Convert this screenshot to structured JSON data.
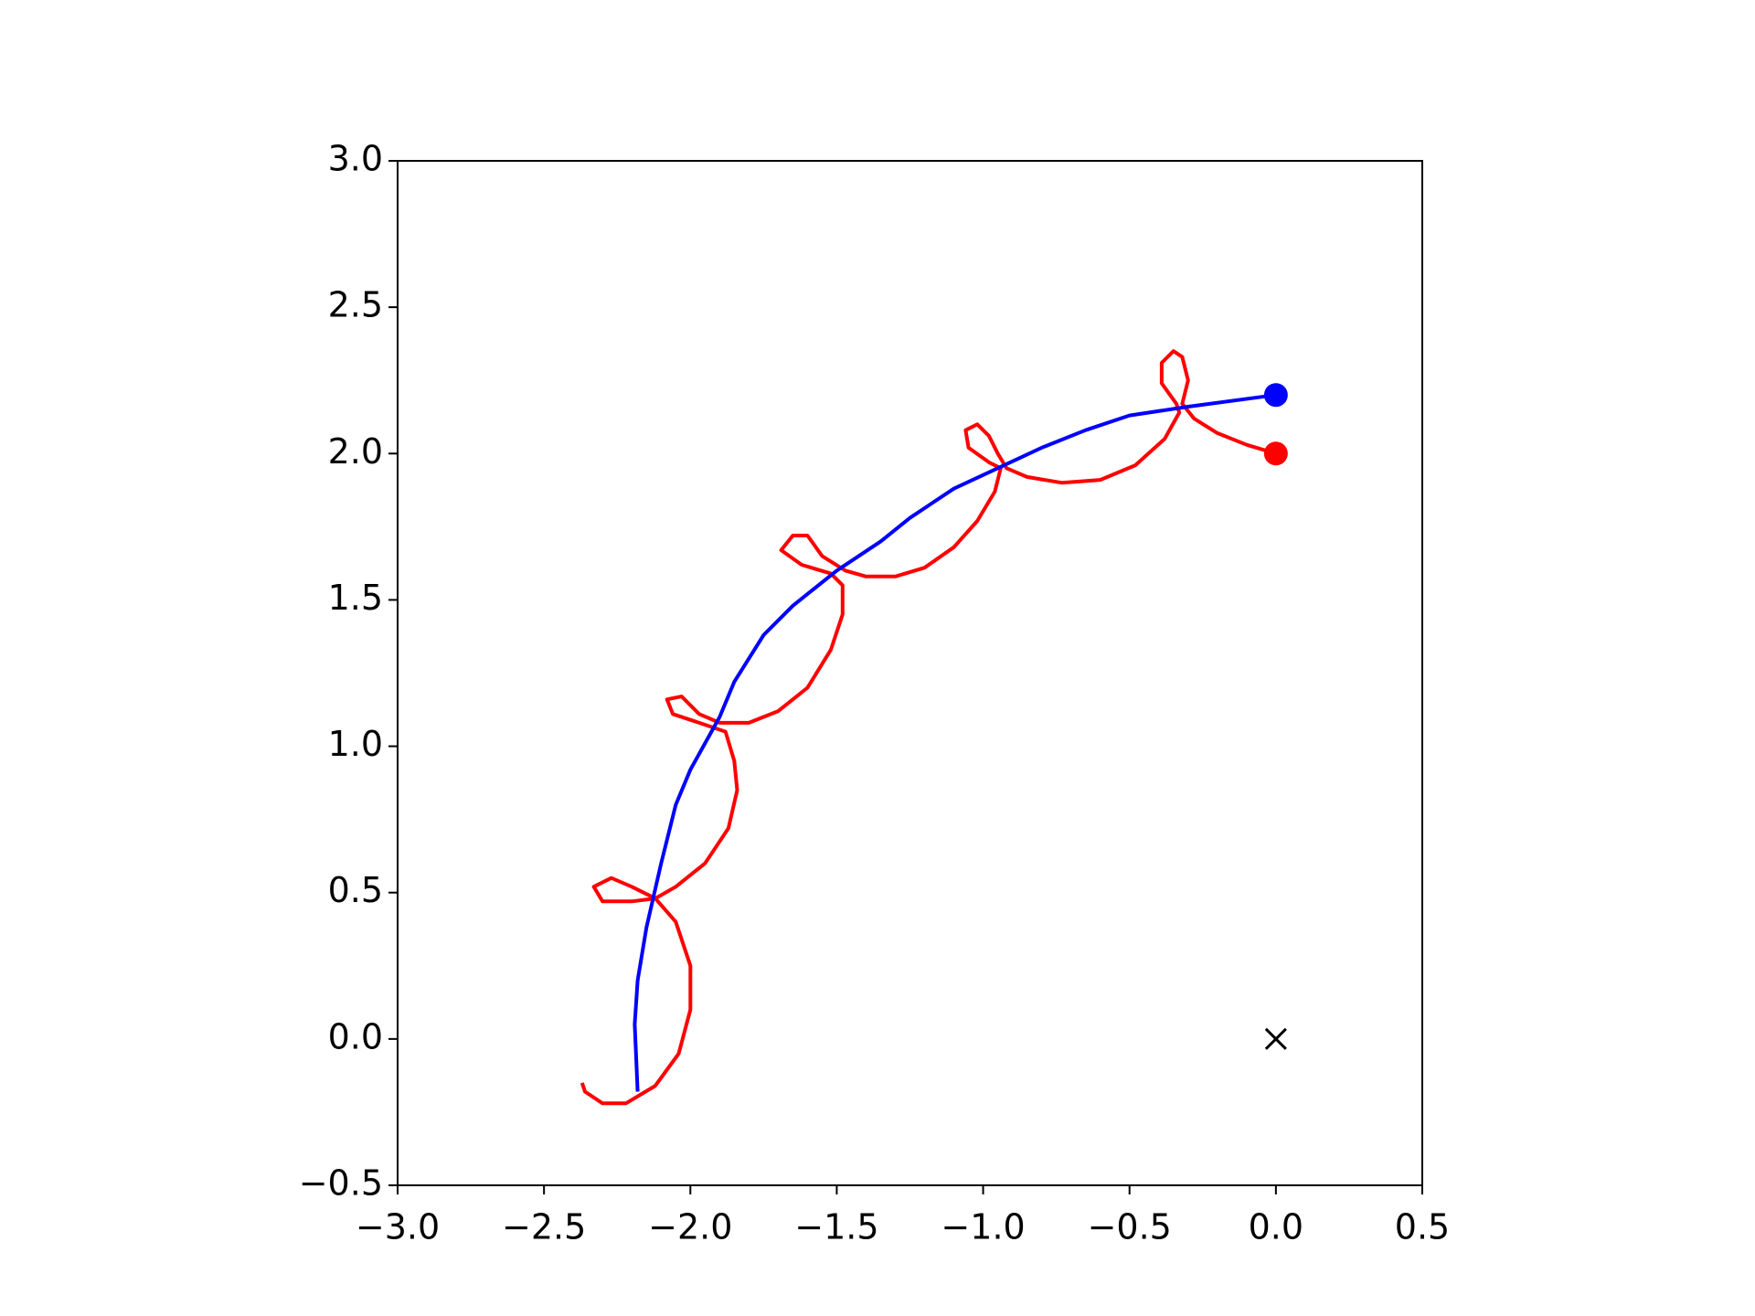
{
  "chart_data": {
    "type": "line",
    "xlim": [
      -3.0,
      0.5
    ],
    "ylim": [
      -0.5,
      3.0
    ],
    "xticks": [
      {
        "value": -3.0,
        "label": "−3.0"
      },
      {
        "value": -2.5,
        "label": "−2.5"
      },
      {
        "value": -2.0,
        "label": "−2.0"
      },
      {
        "value": -1.5,
        "label": "−1.5"
      },
      {
        "value": -1.0,
        "label": "−1.0"
      },
      {
        "value": -0.5,
        "label": "−0.5"
      },
      {
        "value": 0.0,
        "label": "0.0"
      },
      0.5
    ],
    "yticks": [
      {
        "value": -0.5,
        "label": "−0.5"
      },
      {
        "value": 0.0,
        "label": "0.0"
      },
      0.5,
      {
        "value": 1.0,
        "label": "1.0"
      },
      1.5,
      {
        "value": 2.0,
        "label": "2.0"
      },
      2.5,
      {
        "value": 3.0,
        "label": "3.0"
      }
    ],
    "grid": false,
    "series": [
      {
        "color": "#ff0000",
        "x": [
          0,
          -0.1,
          -0.2,
          -0.28,
          -0.32,
          -0.3,
          -0.32,
          -0.35,
          -0.39,
          -0.39,
          -0.34,
          -0.33,
          -0.38,
          -0.48,
          -0.6,
          -0.73,
          -0.85,
          -0.92,
          -0.95,
          -0.98,
          -1.02,
          -1.06,
          -1.05,
          -0.98,
          -0.94,
          -0.96,
          -1.02,
          -1.1,
          -1.2,
          -1.3,
          -1.4,
          -1.47,
          -1.55,
          -1.6,
          -1.65,
          -1.69,
          -1.62,
          -1.52,
          -1.48,
          -1.48,
          -1.52,
          -1.6,
          -1.7,
          -1.8,
          -1.9,
          -1.97,
          -2.03,
          -2.08,
          -2.06,
          -1.97,
          -1.88,
          -1.85,
          -1.84,
          -1.87,
          -1.95,
          -2.05,
          -2.12,
          -2.2,
          -2.27,
          -2.33,
          -2.3,
          -2.2,
          -2.12,
          -2.05,
          -2.0,
          -2.0,
          -2.04,
          -2.12,
          -2.22,
          -2.3,
          -2.36,
          -2.37
        ],
        "values": [
          2.0,
          2.03,
          2.07,
          2.12,
          2.17,
          2.25,
          2.33,
          2.35,
          2.31,
          2.24,
          2.17,
          2.14,
          2.05,
          1.96,
          1.91,
          1.9,
          1.92,
          1.95,
          2.0,
          2.06,
          2.1,
          2.08,
          2.02,
          1.97,
          1.95,
          1.87,
          1.77,
          1.68,
          1.61,
          1.58,
          1.58,
          1.6,
          1.65,
          1.72,
          1.72,
          1.67,
          1.62,
          1.59,
          1.55,
          1.45,
          1.33,
          1.2,
          1.12,
          1.08,
          1.08,
          1.11,
          1.17,
          1.16,
          1.11,
          1.08,
          1.05,
          0.95,
          0.85,
          0.72,
          0.6,
          0.52,
          0.48,
          0.52,
          0.55,
          0.52,
          0.47,
          0.47,
          0.48,
          0.4,
          0.25,
          0.1,
          -0.05,
          -0.16,
          -0.22,
          -0.22,
          -0.18,
          -0.15
        ]
      },
      {
        "color": "#0000ff",
        "x": [
          0,
          -0.3,
          -0.5,
          -0.65,
          -0.8,
          -0.95,
          -1.1,
          -1.25,
          -1.35,
          -1.5,
          -1.65,
          -1.75,
          -1.85,
          -1.9,
          -2.0,
          -2.05,
          -2.1,
          -2.15,
          -2.18,
          -2.19,
          -2.18
        ],
        "values": [
          2.2,
          2.16,
          2.13,
          2.08,
          2.02,
          1.95,
          1.88,
          1.78,
          1.7,
          1.6,
          1.48,
          1.38,
          1.22,
          1.1,
          0.92,
          0.8,
          0.6,
          0.38,
          0.2,
          0.05,
          -0.18
        ]
      }
    ],
    "markers": [
      {
        "x": 0,
        "y": 2.2,
        "color": "#0000ff",
        "marker": "o"
      },
      {
        "x": 0,
        "y": 2.0,
        "color": "#ff0000",
        "marker": "o"
      },
      {
        "x": 0,
        "y": 0,
        "color": "#000000",
        "marker": "x"
      }
    ]
  }
}
